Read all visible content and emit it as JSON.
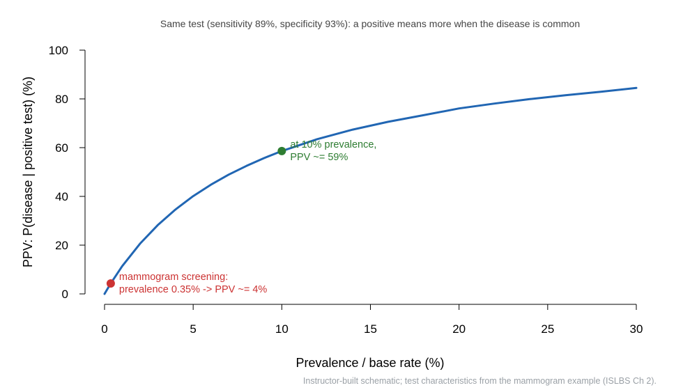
{
  "chart_data": {
    "type": "line",
    "title": "Same test (sensitivity 89%, specificity 93%): a positive means more when the disease is common",
    "xlabel": "Prevalence / base rate (%)",
    "ylabel": "PPV: P(disease | positive test)  (%)",
    "caption": "Instructor-built schematic; test characteristics from the mammogram example (ISLBS Ch 2).",
    "xlim": [
      0,
      30
    ],
    "ylim": [
      0,
      100
    ],
    "x_ticks": [
      "0",
      "5",
      "10",
      "15",
      "20",
      "25",
      "30"
    ],
    "y_ticks": [
      "0",
      "20",
      "40",
      "60",
      "80",
      "100"
    ],
    "grid": false,
    "sensitivity": 0.89,
    "specificity": 0.93,
    "series": [
      {
        "color": "#2166b3",
        "x": [
          0,
          0.35,
          1,
          2,
          3,
          4,
          5,
          6,
          7,
          8,
          9,
          10,
          12,
          14,
          16,
          18,
          20,
          22,
          24,
          26,
          28,
          30
        ],
        "y": [
          0,
          4.3,
          11.4,
          20.6,
          28.2,
          34.6,
          40.1,
          44.8,
          48.9,
          52.5,
          55.7,
          58.6,
          63.5,
          67.4,
          70.6,
          73.3,
          76.1,
          78.1,
          79.9,
          81.5,
          82.9,
          84.5
        ]
      }
    ],
    "highlights": [
      {
        "x": 0.35,
        "y": 4.3,
        "color": "#cc3333",
        "label_lines": [
          "mammogram screening:",
          "prevalence 0.35% -> PPV ~= 4%"
        ]
      },
      {
        "x": 10,
        "y": 58.6,
        "color": "#2e7d32",
        "label_lines": [
          "at 10% prevalence,",
          "PPV ~= 59%"
        ]
      }
    ]
  }
}
